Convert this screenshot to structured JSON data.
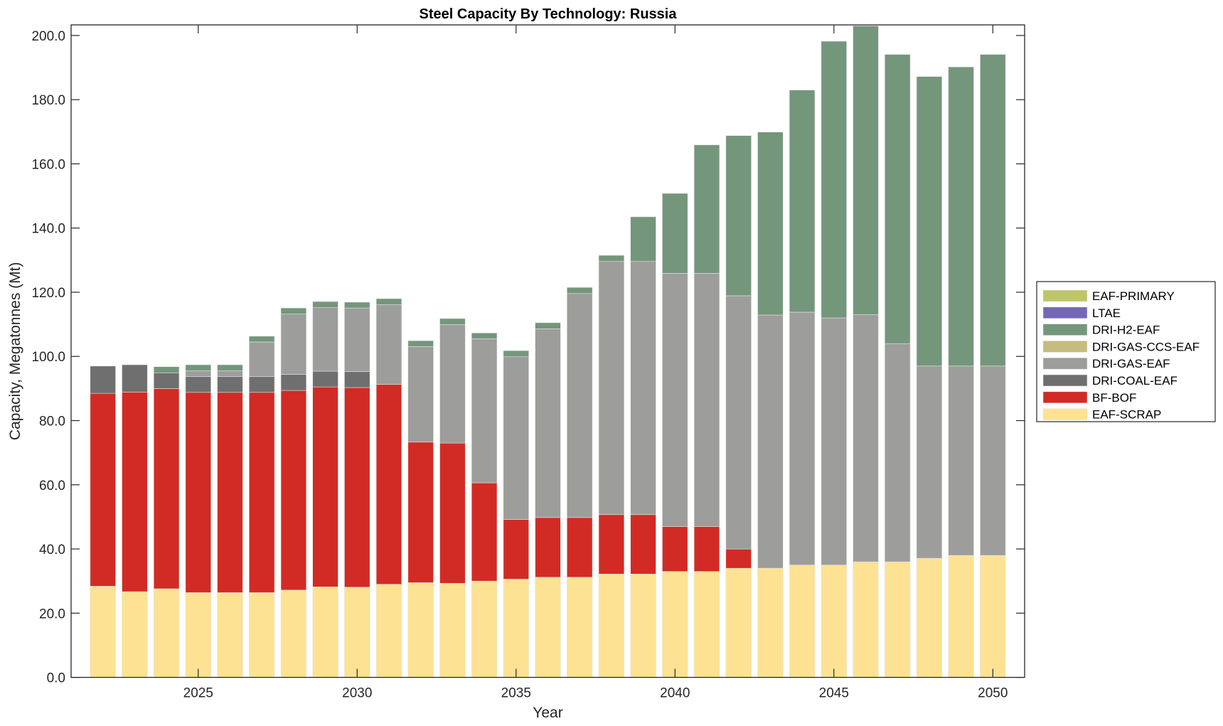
{
  "chart_data": {
    "type": "bar",
    "stacked": true,
    "title": "Steel Capacity By Technology: Russia",
    "xlabel": "Year",
    "ylabel": "Capacity, Megatonnes (Mt)",
    "xlim": [
      2021,
      2051
    ],
    "ylim": [
      0,
      203.3
    ],
    "xticks": [
      2025,
      2030,
      2035,
      2040,
      2045,
      2050
    ],
    "xtick_labels": [
      "2025",
      "2030",
      "2035",
      "2040",
      "2045",
      "2050"
    ],
    "yticks": [
      0,
      20,
      40,
      60,
      80,
      100,
      120,
      140,
      160,
      180,
      200
    ],
    "ytick_labels": [
      "0.0",
      "20.0",
      "40.0",
      "60.0",
      "80.0",
      "100.0",
      "120.0",
      "140.0",
      "160.0",
      "180.0",
      "200.0"
    ],
    "grid": false,
    "legend_position": "right",
    "legend_order": [
      "EAF-PRIMARY",
      "LTAE",
      "DRI-H2-EAF",
      "DRI-GAS-CCS-EAF",
      "DRI-GAS-EAF",
      "DRI-COAL-EAF",
      "BF-BOF",
      "EAF-SCRAP"
    ],
    "categories": [
      2022,
      2023,
      2024,
      2025,
      2026,
      2027,
      2028,
      2029,
      2030,
      2031,
      2032,
      2033,
      2034,
      2035,
      2036,
      2037,
      2038,
      2039,
      2040,
      2041,
      2042,
      2043,
      2044,
      2045,
      2046,
      2047,
      2048,
      2049,
      2050
    ],
    "series": [
      {
        "name": "EAF-SCRAP",
        "color": "#fde293",
        "values": [
          28.4,
          26.7,
          27.6,
          26.4,
          26.4,
          26.4,
          27.2,
          28.2,
          28.1,
          29.0,
          29.5,
          29.3,
          30.0,
          30.6,
          31.2,
          31.2,
          32.2,
          32.2,
          33.0,
          33.0,
          34.0,
          34.0,
          35.0,
          35.0,
          36.0,
          36.0,
          37.1,
          38.0,
          38.0
        ]
      },
      {
        "name": "BF-BOF",
        "color": "#d22b25",
        "values": [
          60.1,
          62.2,
          62.4,
          62.4,
          62.4,
          62.4,
          62.2,
          62.3,
          62.2,
          62.3,
          43.8,
          43.7,
          30.6,
          18.6,
          18.6,
          18.6,
          18.5,
          18.5,
          14.0,
          14.0,
          6.0,
          0,
          0,
          0,
          0,
          0,
          0,
          0,
          0
        ]
      },
      {
        "name": "DRI-COAL-EAF",
        "color": "#6f6f6f",
        "values": [
          8.5,
          8.5,
          4.9,
          4.9,
          4.9,
          4.9,
          5.0,
          4.9,
          5.0,
          0,
          0,
          0,
          0,
          0,
          0,
          0,
          0,
          0,
          0,
          0,
          0,
          0,
          0,
          0,
          0,
          0,
          0,
          0,
          0
        ]
      },
      {
        "name": "DRI-GAS-EAF",
        "color": "#9d9d9b",
        "values": [
          0,
          0,
          0,
          1.8,
          1.8,
          10.8,
          18.8,
          19.8,
          19.8,
          24.8,
          29.8,
          36.9,
          44.9,
          50.7,
          58.8,
          69.8,
          78.9,
          78.9,
          78.9,
          78.9,
          78.9,
          78.9,
          78.8,
          77.0,
          77.0,
          68.0,
          59.9,
          59.0,
          59.0
        ]
      },
      {
        "name": "DRI-GAS-CCS-EAF",
        "color": "#c6bc7f",
        "values": [
          0,
          0,
          0,
          0,
          0,
          0,
          0,
          0,
          0,
          0,
          0,
          0,
          0,
          0,
          0,
          0,
          0,
          0,
          0,
          0,
          0,
          0,
          0,
          0,
          0,
          0,
          0,
          0,
          0
        ]
      },
      {
        "name": "DRI-H2-EAF",
        "color": "#74967b",
        "values": [
          0,
          0,
          1.9,
          1.9,
          1.9,
          1.8,
          1.9,
          1.9,
          1.8,
          1.9,
          1.8,
          1.9,
          1.8,
          1.9,
          1.9,
          1.9,
          1.9,
          13.9,
          24.9,
          40.0,
          49.9,
          57.0,
          69.2,
          86.2,
          90.0,
          90.1,
          90.2,
          93.2,
          97.1
        ]
      },
      {
        "name": "LTAE",
        "color": "#7467b6",
        "values": [
          0,
          0,
          0,
          0,
          0,
          0,
          0,
          0,
          0,
          0,
          0,
          0,
          0,
          0,
          0,
          0,
          0,
          0,
          0,
          0,
          0,
          0,
          0,
          0,
          0,
          0,
          0,
          0,
          0
        ]
      },
      {
        "name": "EAF-PRIMARY",
        "color": "#bec66c",
        "values": [
          0,
          0,
          0,
          0,
          0,
          0,
          0,
          0,
          0,
          0,
          0,
          0,
          0,
          0,
          0,
          0,
          0,
          0,
          0,
          0,
          0,
          0,
          0,
          0,
          0,
          0,
          0,
          0,
          0
        ]
      }
    ]
  }
}
